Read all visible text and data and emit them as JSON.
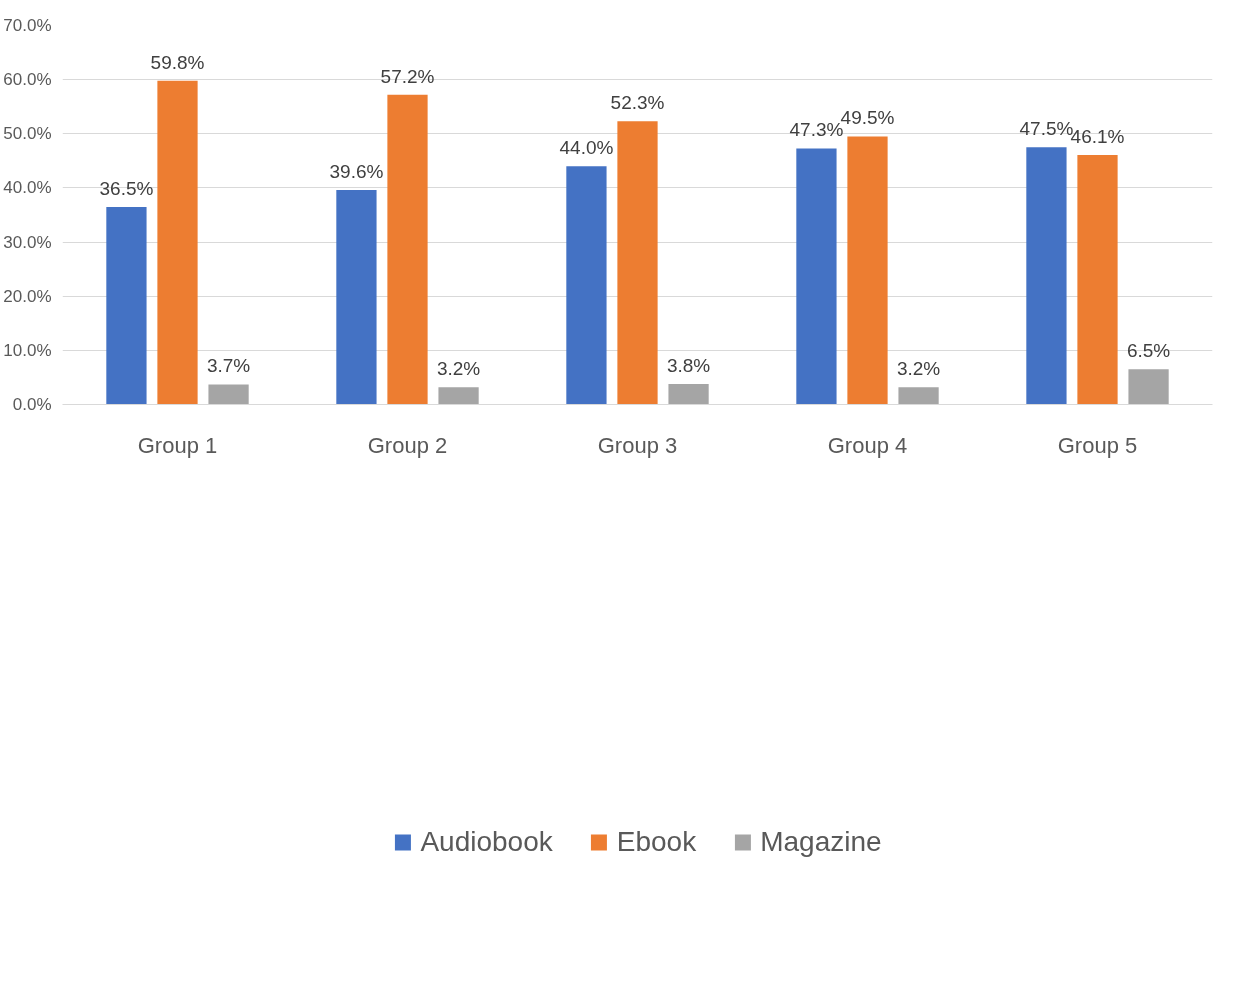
{
  "chart_data": {
    "type": "bar",
    "categories": [
      "Group 1",
      "Group 2",
      "Group 3",
      "Group 4",
      "Group 5"
    ],
    "series": [
      {
        "name": "Audiobook",
        "color": "#4472c4",
        "values": [
          36.5,
          39.6,
          44.0,
          47.3,
          47.5
        ],
        "value_labels": [
          "36.5%",
          "39.6%",
          "44.0%",
          "47.3%",
          "47.5%"
        ]
      },
      {
        "name": "Ebook",
        "color": "#ed7d31",
        "values": [
          59.8,
          57.2,
          52.3,
          49.5,
          46.1
        ],
        "value_labels": [
          "59.8%",
          "57.2%",
          "52.3%",
          "49.5%",
          "46.1%"
        ]
      },
      {
        "name": "Magazine",
        "color": "#a5a5a5",
        "values": [
          3.7,
          3.2,
          3.8,
          3.2,
          6.5
        ],
        "value_labels": [
          "3.7%",
          "3.2%",
          "3.8%",
          "3.2%",
          "6.5%"
        ]
      }
    ],
    "ylim": [
      0,
      70
    ],
    "yticks": [
      {
        "value": 0,
        "label": "0.0%"
      },
      {
        "value": 10,
        "label": "10.0%"
      },
      {
        "value": 20,
        "label": "20.0%"
      },
      {
        "value": 30,
        "label": "30.0%"
      },
      {
        "value": 40,
        "label": "40.0%"
      },
      {
        "value": 50,
        "label": "50.0%"
      },
      {
        "value": 60,
        "label": "60.0%"
      },
      {
        "value": 70,
        "label": "70.0%"
      }
    ],
    "grid": "y",
    "legend": "bottom"
  }
}
